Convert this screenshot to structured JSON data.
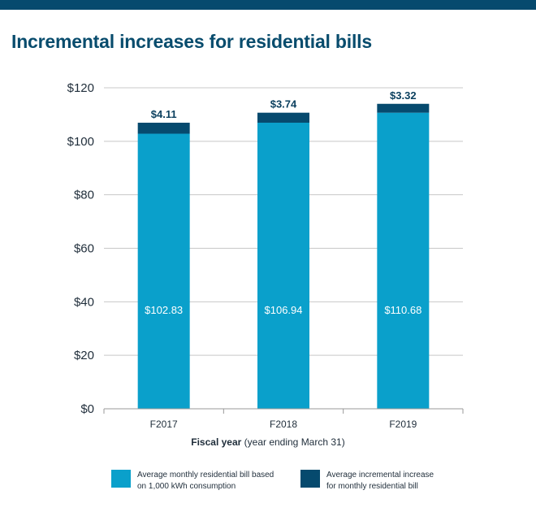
{
  "colors": {
    "base": "#0aa0cb",
    "increase": "#064a6e",
    "title": "#084c6d",
    "grid": "#c8c8c8",
    "bar_top_label": "#0a3f5e"
  },
  "title": "Incremental increases for residential bills",
  "xlabel_bold": "Fiscal year",
  "xlabel_rest": " (year ending March 31)",
  "legend": {
    "base_line1": "Average monthly residential bill based",
    "base_line2": "on 1,000 kWh consumption",
    "increase_line1": "Average incremental increase",
    "increase_line2": "for monthly residential bill"
  },
  "chart_data": {
    "type": "bar",
    "stacked": true,
    "title": "Incremental increases for residential bills",
    "xlabel": "Fiscal year (year ending March 31)",
    "ylabel": "",
    "ylim": [
      0,
      120
    ],
    "yticks": [
      0,
      20,
      40,
      60,
      80,
      100,
      120
    ],
    "ytick_labels": [
      "$0",
      "$20",
      "$40",
      "$60",
      "$80",
      "$100",
      "$120"
    ],
    "categories": [
      "F2017",
      "F2018",
      "F2019"
    ],
    "series": [
      {
        "name": "Average monthly residential bill based on 1,000 kWh consumption",
        "values": [
          102.83,
          106.94,
          110.68
        ],
        "labels": [
          "$102.83",
          "$106.94",
          "$110.68"
        ]
      },
      {
        "name": "Average incremental increase for monthly residential bill",
        "values": [
          4.11,
          3.74,
          3.32
        ],
        "labels": [
          "$4.11",
          "$3.74",
          "$3.32"
        ]
      }
    ],
    "grid": true,
    "legend_position": "bottom"
  }
}
